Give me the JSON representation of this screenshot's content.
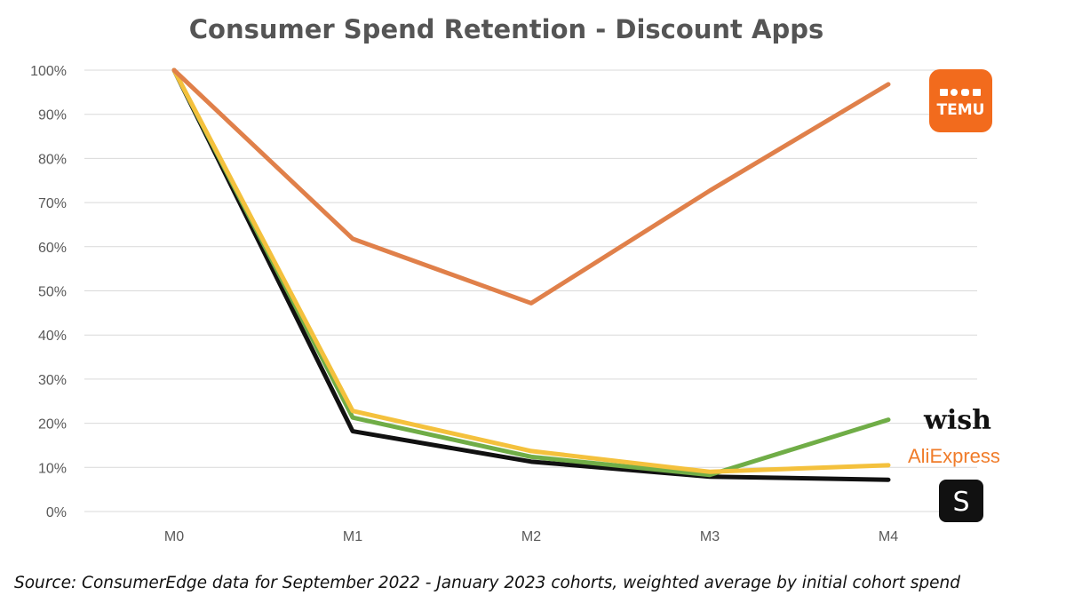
{
  "chart_data": {
    "type": "line",
    "title": "Consumer Spend Retention - Discount Apps",
    "xlabel": "",
    "ylabel": "",
    "categories": [
      "M0",
      "M1",
      "M2",
      "M3",
      "M4"
    ],
    "y_ticks": [
      "0%",
      "10%",
      "20%",
      "30%",
      "40%",
      "50%",
      "60%",
      "70%",
      "80%",
      "90%",
      "100%"
    ],
    "ylim": [
      0,
      100
    ],
    "grid": true,
    "legend": "logos at right end of each line",
    "series": [
      {
        "name": "TEMU",
        "color": "#e0804a",
        "values": [
          100,
          61.8,
          47.2,
          72.7,
          96.8
        ]
      },
      {
        "name": "wish",
        "color": "#70ad47",
        "values": [
          100,
          21.3,
          12.4,
          8.3,
          20.8
        ]
      },
      {
        "name": "AliExpress",
        "color": "#f4c13d",
        "values": [
          100,
          22.8,
          13.7,
          9.0,
          10.5
        ]
      },
      {
        "name": "S",
        "color": "#111111",
        "values": [
          100,
          18.2,
          11.3,
          7.9,
          7.2
        ]
      }
    ]
  },
  "logos": {
    "temu": {
      "label": "TEMU",
      "color": "#f26b1d"
    },
    "wish": {
      "label": "wish"
    },
    "aliexpress": {
      "label": "AliExpress",
      "color": "#f07c2a"
    },
    "shein": {
      "label": "S",
      "color": "#111111"
    }
  },
  "source": "Source: ConsumerEdge data for September 2022 - January 2023 cohorts, weighted average by initial cohort spend"
}
